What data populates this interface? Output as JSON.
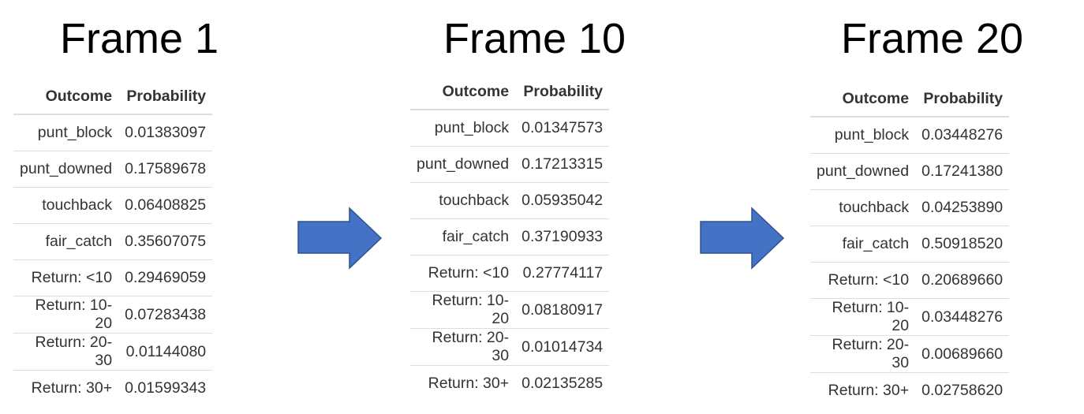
{
  "frames": [
    {
      "title": "Frame 1",
      "headers": [
        "Outcome",
        "Probability"
      ],
      "rows": [
        [
          "punt_block",
          "0.01383097"
        ],
        [
          "punt_downed",
          "0.17589678"
        ],
        [
          "touchback",
          "0.06408825"
        ],
        [
          "fair_catch",
          "0.35607075"
        ],
        [
          "Return: <10",
          "0.29469059"
        ],
        [
          "Return: 10-20",
          "0.07283438"
        ],
        [
          "Return: 20-30",
          "0.01144080"
        ],
        [
          "Return: 30+",
          "0.01599343"
        ]
      ]
    },
    {
      "title": "Frame 10",
      "headers": [
        "Outcome",
        "Probability"
      ],
      "rows": [
        [
          "punt_block",
          "0.01347573"
        ],
        [
          "punt_downed",
          "0.17213315"
        ],
        [
          "touchback",
          "0.05935042"
        ],
        [
          "fair_catch",
          "0.37190933"
        ],
        [
          "Return: <10",
          "0.27774117"
        ],
        [
          "Return: 10-20",
          "0.08180917"
        ],
        [
          "Return: 20-30",
          "0.01014734"
        ],
        [
          "Return: 30+",
          "0.02135285"
        ]
      ]
    },
    {
      "title": "Frame 20",
      "headers": [
        "Outcome",
        "Probability"
      ],
      "rows": [
        [
          "punt_block",
          "0.03448276"
        ],
        [
          "punt_downed",
          "0.17241380"
        ],
        [
          "touchback",
          "0.04253890"
        ],
        [
          "fair_catch",
          "0.50918520"
        ],
        [
          "Return: <10",
          "0.20689660"
        ],
        [
          "Return: 10-20",
          "0.03448276"
        ],
        [
          "Return: 20-30",
          "0.00689660"
        ],
        [
          "Return: 30+",
          "0.02758620"
        ]
      ]
    }
  ],
  "colors": {
    "arrow_fill": "#4472C4",
    "arrow_stroke": "#2F528F",
    "rule": "#dddddd"
  },
  "icons": [
    "right-arrow-icon",
    "right-arrow-icon"
  ]
}
